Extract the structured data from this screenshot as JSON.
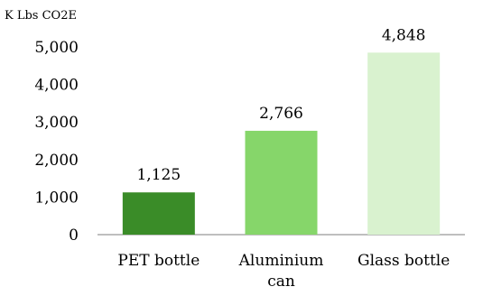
{
  "chart_data": {
    "type": "bar",
    "categories": [
      "PET bottle",
      "Aluminium can",
      "Glass bottle"
    ],
    "category_lines": [
      [
        "PET bottle"
      ],
      [
        "Aluminium",
        "can"
      ],
      [
        "Glass bottle"
      ]
    ],
    "values": [
      1125,
      2766,
      4848
    ],
    "data_labels": [
      "1,125",
      "2,766",
      "4,848"
    ],
    "colors": [
      "#3a8c28",
      "#86d66a",
      "#d9f2cf"
    ],
    "ylabel": "K Lbs CO2E",
    "ylim": [
      0,
      5000
    ],
    "y_ticks": [
      0,
      1000,
      2000,
      3000,
      4000,
      5000
    ],
    "y_tick_labels": [
      "0",
      "1,000",
      "2,000",
      "3,000",
      "4,000",
      "5,000"
    ],
    "grid": false,
    "legend": "none"
  }
}
